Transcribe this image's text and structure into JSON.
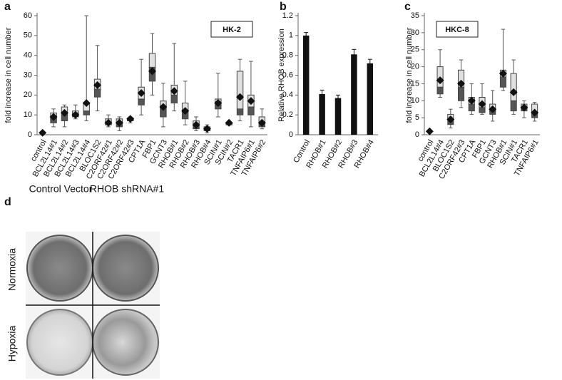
{
  "chart_data": [
    {
      "type": "box",
      "panel_label": "a",
      "inset_label": "HK-2",
      "y_label": "fold increase in cell number",
      "categories": [
        "control",
        "BCL2L14#1",
        "BCL2L14#2",
        "BCL2L14#3",
        "BCL2L14#4",
        "BLOC1S2",
        "C2ORF42#1",
        "C2ORF42#2",
        "C2ORF42#3",
        "CPT1A",
        "FBP1",
        "GCNT3",
        "RHOB#1",
        "RHOB#2",
        "RHOB#3",
        "RHOB#4",
        "SCIN#1",
        "SCIN#2",
        "TACR1",
        "TNFAIP6#1",
        "TNFAIP6#2"
      ],
      "whisker_low": [
        null,
        4,
        4,
        8,
        7,
        12,
        4,
        2,
        6,
        10,
        20,
        4,
        12,
        5,
        2,
        1,
        9,
        5,
        7,
        4,
        3
      ],
      "q1": [
        null,
        6,
        7,
        9,
        10,
        19,
        5,
        4,
        7,
        15,
        27,
        9,
        16,
        8,
        3,
        2,
        13,
        5,
        10,
        10,
        4
      ],
      "median": [
        null,
        8,
        10,
        11,
        12,
        23,
        6,
        6,
        8,
        18,
        34,
        14,
        20,
        12,
        5,
        3,
        15,
        6,
        13,
        14,
        6
      ],
      "q3": [
        null,
        11,
        14,
        12,
        16,
        28,
        8,
        8,
        8.5,
        24,
        41,
        17,
        25,
        16,
        7,
        4,
        18,
        6,
        32,
        20,
        9
      ],
      "whisker_high": [
        null,
        13,
        15,
        15,
        60,
        45,
        10,
        9,
        9,
        38,
        51,
        26,
        46,
        27,
        9,
        5,
        31,
        7,
        38,
        37,
        13
      ],
      "mean": [
        1,
        9,
        11,
        10,
        16,
        25,
        6,
        6,
        8,
        21,
        32,
        14,
        22,
        12,
        5,
        3,
        16,
        6,
        19,
        17,
        6
      ],
      "ylim": [
        0,
        60
      ],
      "yticks": [
        0,
        10,
        20,
        30,
        40,
        50,
        60
      ]
    },
    {
      "type": "bar",
      "panel_label": "b",
      "y_label": "Relative RHOB expression",
      "categories": [
        "Control",
        "RHOB#1",
        "RHOB#2",
        "RHOB#3",
        "RHOB#4"
      ],
      "values": [
        1.0,
        0.41,
        0.37,
        0.81,
        0.72
      ],
      "errors": [
        0.03,
        0.04,
        0.03,
        0.05,
        0.04
      ],
      "color": "#111111",
      "ylim": [
        0,
        1.2
      ],
      "yticks": [
        0,
        0.2,
        0.4,
        0.6,
        0.8,
        1,
        1.2
      ]
    },
    {
      "type": "box",
      "panel_label": "c",
      "inset_label": "HKC-8",
      "y_label": "fold increase in cell number",
      "categories": [
        "control",
        "BCL2L14#4",
        "BLOC1S2",
        "C2ORF42#3",
        "CPT1A",
        "FBP1",
        "GCNT3",
        "RHOB#1",
        "SCIN#1",
        "TACR1",
        "TNFAIP6#1"
      ],
      "whisker_low": [
        null,
        11,
        2,
        8,
        6,
        6,
        4,
        13,
        6,
        5,
        4
      ],
      "q1": [
        null,
        12,
        3,
        10,
        7,
        6.5,
        6,
        14,
        7,
        7,
        5
      ],
      "median": [
        null,
        14,
        4.5,
        14,
        9,
        8,
        7,
        17,
        10,
        8,
        6.5
      ],
      "q3": [
        null,
        20,
        6,
        19,
        11,
        11,
        9,
        19,
        18,
        9,
        9
      ],
      "whisker_high": [
        null,
        25,
        7.5,
        22,
        15,
        15,
        13,
        31,
        22,
        10,
        9.5
      ],
      "mean": [
        1,
        16,
        4.5,
        15,
        10,
        9,
        7.5,
        18,
        12.5,
        8,
        6.5
      ],
      "ylim": [
        0,
        35
      ],
      "yticks": [
        0,
        5,
        10,
        15,
        20,
        25,
        30,
        35
      ]
    }
  ],
  "panel_d": {
    "label": "d",
    "columns": [
      "Control Vector",
      "RHOB shRNA#1"
    ],
    "rows": [
      "Normoxia",
      "Hypoxia"
    ]
  }
}
